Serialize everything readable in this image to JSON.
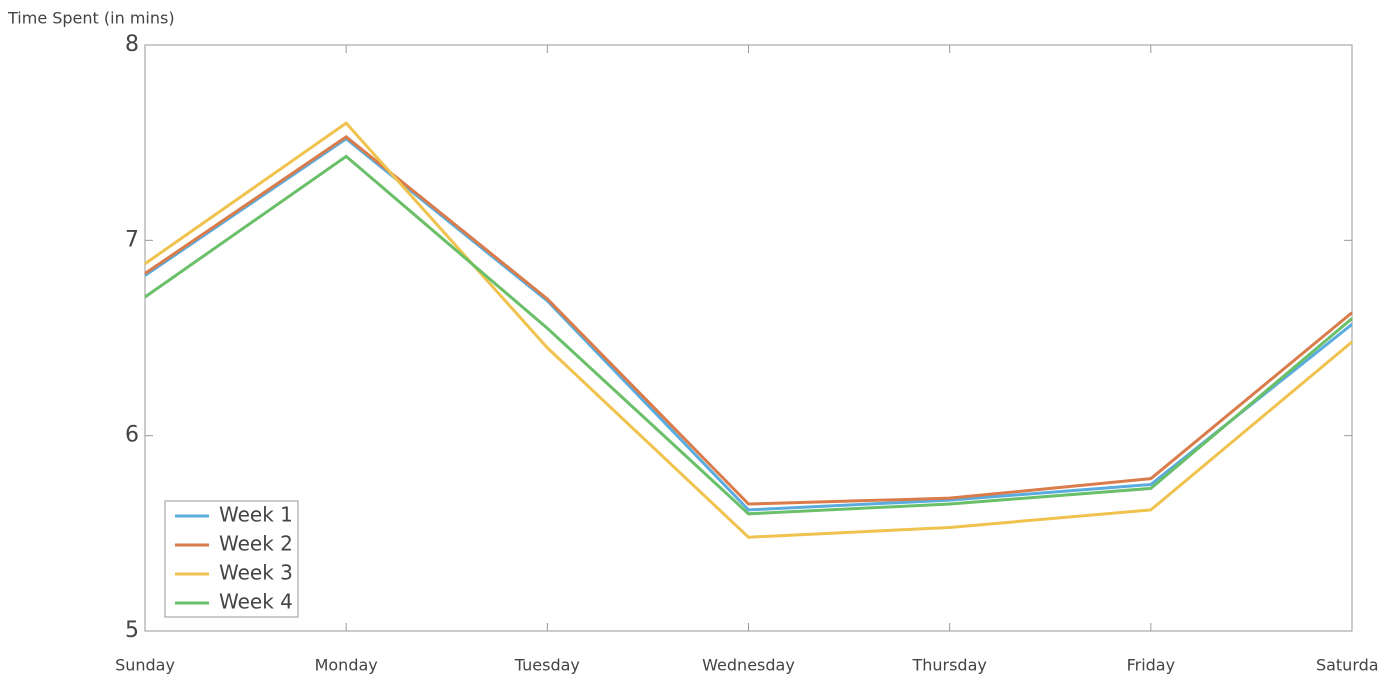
{
  "chart_data": {
    "type": "line",
    "title": "Time Spent (in mins)",
    "categories": [
      "Sunday",
      "Monday",
      "Tuesday",
      "Wednesday",
      "Thursday",
      "Friday",
      "Saturday"
    ],
    "series": [
      {
        "name": "Week 1",
        "color": "#5aacdf",
        "values": [
          6.82,
          7.52,
          6.69,
          5.62,
          5.67,
          5.75,
          6.57
        ]
      },
      {
        "name": "Week 2",
        "color": "#d97b4a",
        "values": [
          6.83,
          7.53,
          6.7,
          5.65,
          5.68,
          5.78,
          6.63
        ]
      },
      {
        "name": "Week 3",
        "color": "#f0c24e",
        "values": [
          6.88,
          7.6,
          6.45,
          5.48,
          5.53,
          5.62,
          6.48
        ]
      },
      {
        "name": "Week 4",
        "color": "#6abf69",
        "values": [
          6.71,
          7.43,
          6.55,
          5.6,
          5.65,
          5.73,
          6.6
        ]
      }
    ],
    "ylim": [
      5,
      8
    ],
    "yticks": [
      5,
      6,
      7,
      8
    ],
    "legend": "lower-left"
  }
}
